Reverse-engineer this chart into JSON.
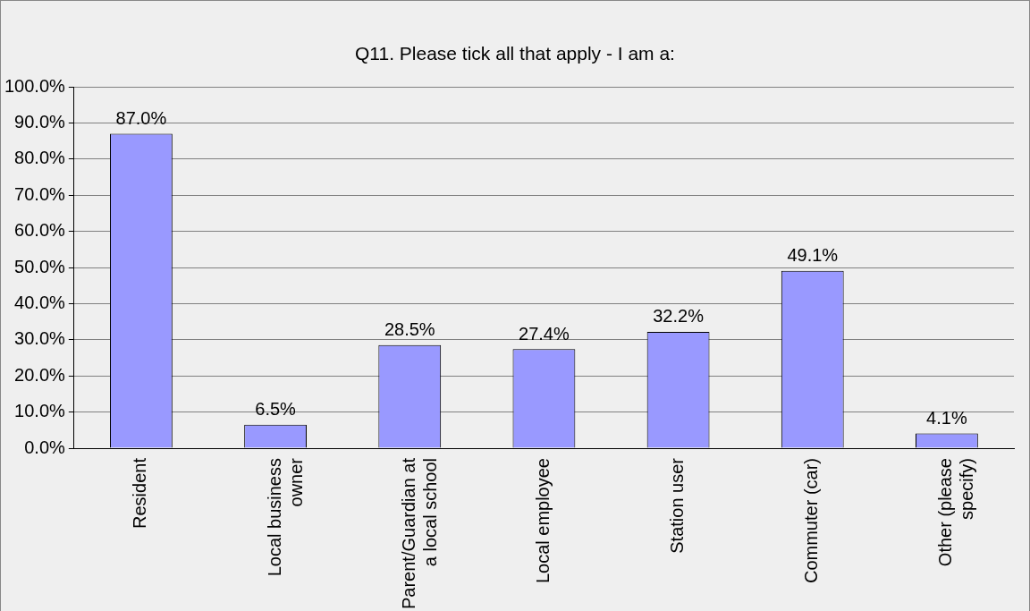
{
  "chart_data": {
    "type": "bar",
    "title": "Q11. Please tick all that apply - I am a:",
    "categories": [
      "Resident",
      "Local business owner",
      "Parent/Guardian at a local school",
      "Local employee",
      "Station user",
      "Commuter (car)",
      "Other (please specify)"
    ],
    "values": [
      87.0,
      6.5,
      28.5,
      27.4,
      32.2,
      49.1,
      4.1
    ],
    "value_labels": [
      "87.0%",
      "6.5%",
      "28.5%",
      "27.4%",
      "32.2%",
      "49.1%",
      "4.1%"
    ],
    "color": "#9999ff",
    "ylim": [
      0,
      100
    ],
    "yticks": [
      {
        "value": 0,
        "label": "0.0%"
      },
      {
        "value": 10,
        "label": "10.0%"
      },
      {
        "value": 20,
        "label": "20.0%"
      },
      {
        "value": 30,
        "label": "30.0%"
      },
      {
        "value": 40,
        "label": "40.0%"
      },
      {
        "value": 50,
        "label": "50.0%"
      },
      {
        "value": 60,
        "label": "60.0%"
      },
      {
        "value": 70,
        "label": "70.0%"
      },
      {
        "value": 80,
        "label": "80.0%"
      },
      {
        "value": 90,
        "label": "90.0%"
      },
      {
        "value": 100,
        "label": "100.0%"
      }
    ],
    "grid": "y",
    "legend": false
  }
}
